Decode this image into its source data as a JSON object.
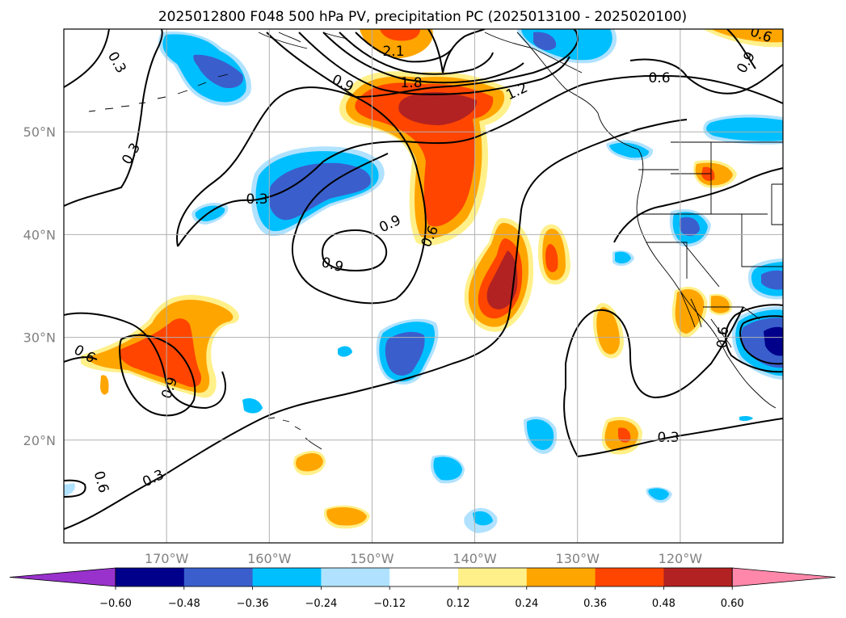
{
  "chart_data": {
    "type": "map",
    "title": "2025012800 F048 500 hPa PV, precipitation PC (2025013100 - 2025020100)",
    "x_ticks": [
      {
        "lon": -170,
        "label": "170°W"
      },
      {
        "lon": -160,
        "label": "160°W"
      },
      {
        "lon": -150,
        "label": "150°W"
      },
      {
        "lon": -140,
        "label": "140°W"
      },
      {
        "lon": -130,
        "label": "130°W"
      },
      {
        "lon": -120,
        "label": "120°W"
      }
    ],
    "y_ticks": [
      {
        "lat": 50,
        "label": "50°N"
      },
      {
        "lat": 40,
        "label": "40°N"
      },
      {
        "lat": 30,
        "label": "30°N"
      },
      {
        "lat": 20,
        "label": "20°N"
      }
    ],
    "lon_range": [
      -180,
      -110
    ],
    "lat_range": [
      10,
      60
    ],
    "grid": true,
    "colorbar": {
      "levels": [
        -0.6,
        -0.48,
        -0.36,
        -0.24,
        -0.12,
        0.12,
        0.24,
        0.36,
        0.48,
        0.6
      ],
      "tick_labels": [
        "−0.60",
        "−0.48",
        "−0.36",
        "−0.24",
        "−0.12",
        "0.12",
        "0.24",
        "0.36",
        "0.48",
        "0.60"
      ],
      "colors": [
        "#9932cc",
        "#00008b",
        "#3a5fcd",
        "#00bfff",
        "#b0e2ff",
        "#ffffff",
        "#fff08a",
        "#ffa500",
        "#ff4500",
        "#b22222",
        "#ff88aa"
      ]
    },
    "contour_labels": [
      "0.3",
      "0.3",
      "0.3",
      "0.3",
      "0.6",
      "0.6",
      "0.6",
      "0.6",
      "0.6",
      "0.9",
      "0.9",
      "0.9",
      "0.9",
      "0.9",
      "1.2",
      "1.8",
      "2.1",
      "0.6",
      "0.3"
    ]
  }
}
